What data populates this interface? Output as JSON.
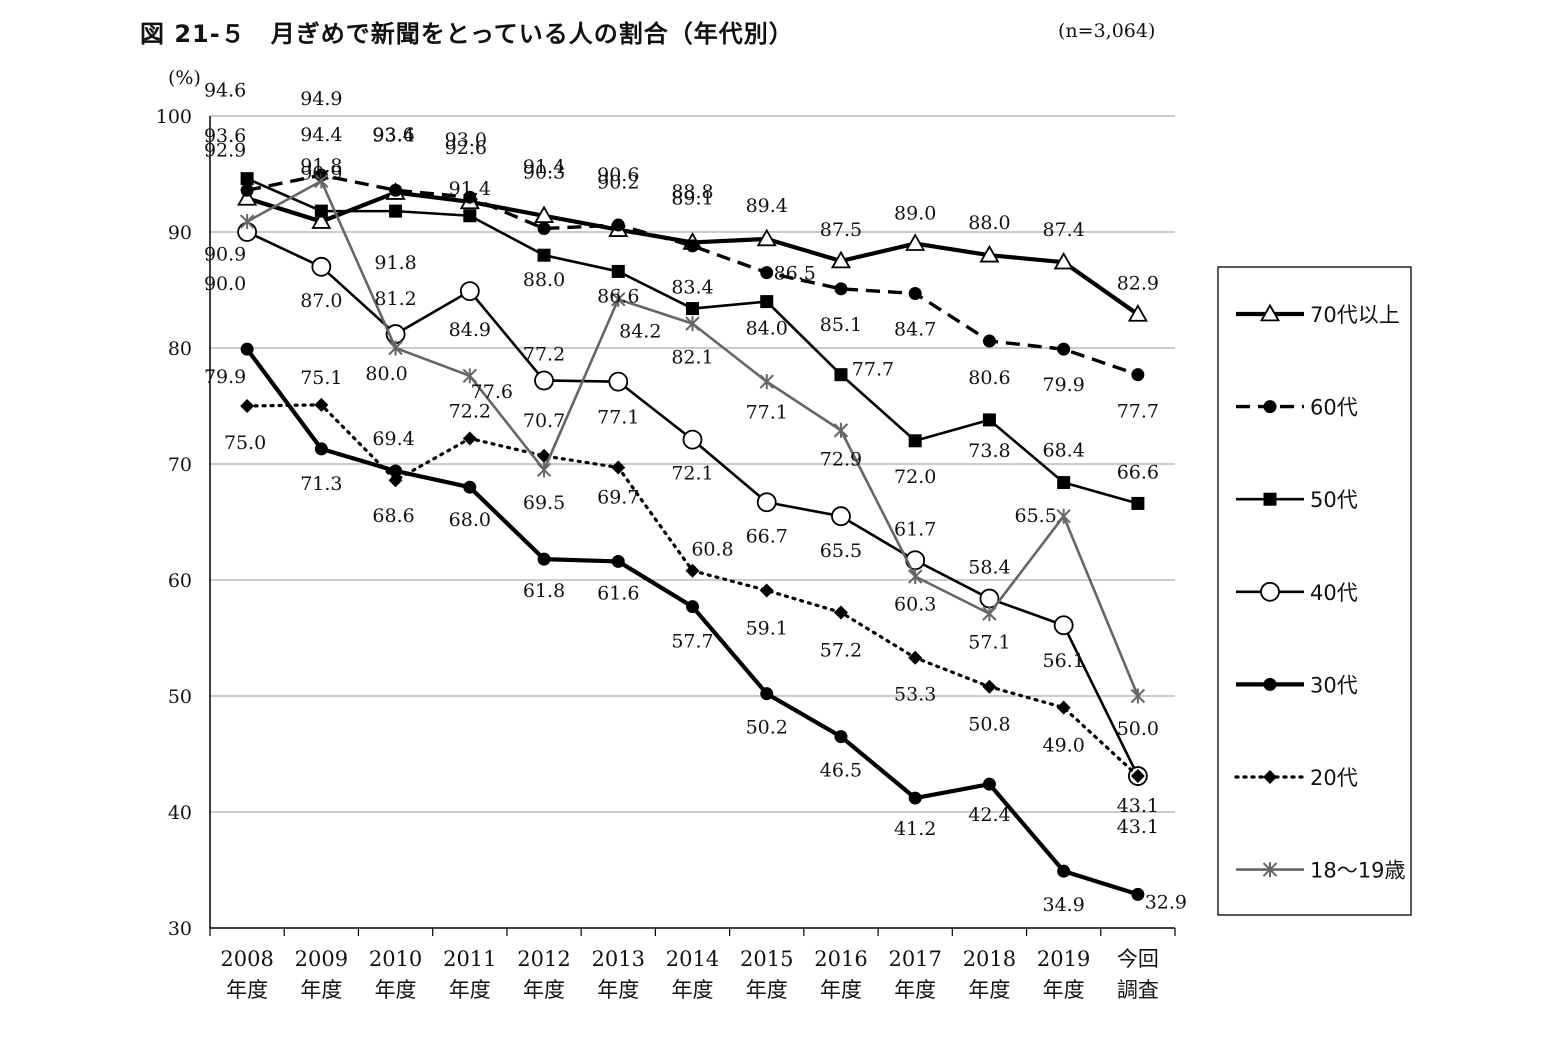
{
  "chart_data": {
    "type": "line",
    "title": "図 21-５　月ぎめで新聞をとっている人の割合（年代別）",
    "sample_size": "(n=3,064)",
    "ylabel": "(%)",
    "ylim": [
      30,
      100
    ],
    "yticks": [
      "30",
      "40",
      "50",
      "60",
      "70",
      "80",
      "90",
      "100"
    ],
    "categories": [
      [
        "2008",
        "年度"
      ],
      [
        "2009",
        "年度"
      ],
      [
        "2010",
        "年度"
      ],
      [
        "2011",
        "年度"
      ],
      [
        "2012",
        "年度"
      ],
      [
        "2013",
        "年度"
      ],
      [
        "2014",
        "年度"
      ],
      [
        "2015",
        "年度"
      ],
      [
        "2016",
        "年度"
      ],
      [
        "2017",
        "年度"
      ],
      [
        "2018",
        "年度"
      ],
      [
        "2019",
        "年度"
      ],
      [
        "今回",
        "調査"
      ]
    ],
    "grid": "horizontal",
    "legend_position": "right",
    "series": [
      {
        "name": "70代以上",
        "style": "solid-thick",
        "marker": "triangle-open",
        "color": "#000000",
        "values": [
          92.9,
          90.9,
          93.4,
          92.6,
          91.4,
          90.2,
          89.1,
          89.4,
          87.5,
          89.0,
          88.0,
          87.4,
          82.9
        ],
        "labels": [
          "92.9",
          "90.9",
          "93.4",
          "92.6",
          "91.4",
          "90.2",
          "89.1",
          "89.4",
          "87.5",
          "89.0",
          "88.0",
          "87.4",
          "82.9"
        ]
      },
      {
        "name": "60代",
        "style": "dashed",
        "marker": "circle-filled",
        "color": "#000000",
        "values": [
          93.6,
          94.9,
          93.6,
          93.0,
          90.3,
          90.6,
          88.8,
          86.5,
          85.1,
          84.7,
          80.6,
          79.9,
          77.7
        ],
        "labels": [
          "93.6",
          "94.9",
          "93.6",
          "93.0",
          "90.3",
          "90.6",
          "88.8",
          "86.5",
          "85.1",
          "84.7",
          "80.6",
          "79.9",
          "77.7"
        ]
      },
      {
        "name": "50代",
        "style": "solid",
        "marker": "square-filled",
        "color": "#000000",
        "values": [
          94.6,
          91.8,
          91.8,
          91.4,
          88.0,
          86.6,
          83.4,
          84.0,
          77.7,
          72.0,
          73.8,
          68.4,
          66.6
        ],
        "labels": [
          "94.6",
          "91.8",
          "91.8",
          "91.4",
          "88.0",
          "86.6",
          "83.4",
          "84.0",
          "77.7",
          "72.0",
          "73.8",
          "68.4",
          "66.6"
        ]
      },
      {
        "name": "40代",
        "style": "solid",
        "marker": "circle-open",
        "color": "#000000",
        "values": [
          90.0,
          87.0,
          81.2,
          84.9,
          77.2,
          77.1,
          72.1,
          66.7,
          65.5,
          61.7,
          58.4,
          56.1,
          43.1
        ],
        "labels": [
          "90.0",
          "87.0",
          "81.2",
          "84.9",
          "77.2",
          "77.1",
          "72.1",
          "66.7",
          "65.5",
          "61.7",
          "58.4",
          "56.1",
          "43.1"
        ]
      },
      {
        "name": "30代",
        "style": "solid-thick",
        "marker": "circle-filled",
        "color": "#000000",
        "values": [
          79.9,
          71.3,
          69.4,
          68.0,
          61.8,
          61.6,
          57.7,
          50.2,
          46.5,
          41.2,
          42.4,
          34.9,
          32.9
        ],
        "labels": [
          "79.9",
          "71.3",
          "69.4",
          "68.0",
          "61.8",
          "61.6",
          "57.7",
          "50.2",
          "46.5",
          "41.2",
          "42.4",
          "34.9",
          "32.9"
        ]
      },
      {
        "name": "20代",
        "style": "dotted",
        "marker": "diamond-filled",
        "color": "#000000",
        "values": [
          75.0,
          75.1,
          68.6,
          72.2,
          70.7,
          69.7,
          60.8,
          59.1,
          57.2,
          53.3,
          50.8,
          49.0,
          43.1
        ],
        "labels": [
          "75.0",
          "75.1",
          "68.6",
          "72.2",
          "70.7",
          "69.7",
          "60.8",
          "59.1",
          "57.2",
          "53.3",
          "50.8",
          "49.0",
          "43.1"
        ]
      },
      {
        "name": "18～19歳",
        "style": "solid",
        "marker": "asterisk",
        "color": "#666666",
        "values": [
          90.9,
          94.4,
          80.0,
          77.6,
          69.5,
          84.2,
          82.1,
          77.1,
          72.9,
          60.3,
          57.1,
          65.5,
          50.0
        ],
        "labels": [
          "90.9",
          "94.4",
          "80.0",
          "77.6",
          "69.5",
          "84.2",
          "82.1",
          "77.1",
          "72.9",
          "60.3",
          "57.1",
          "65.5",
          "50.0"
        ]
      }
    ]
  }
}
